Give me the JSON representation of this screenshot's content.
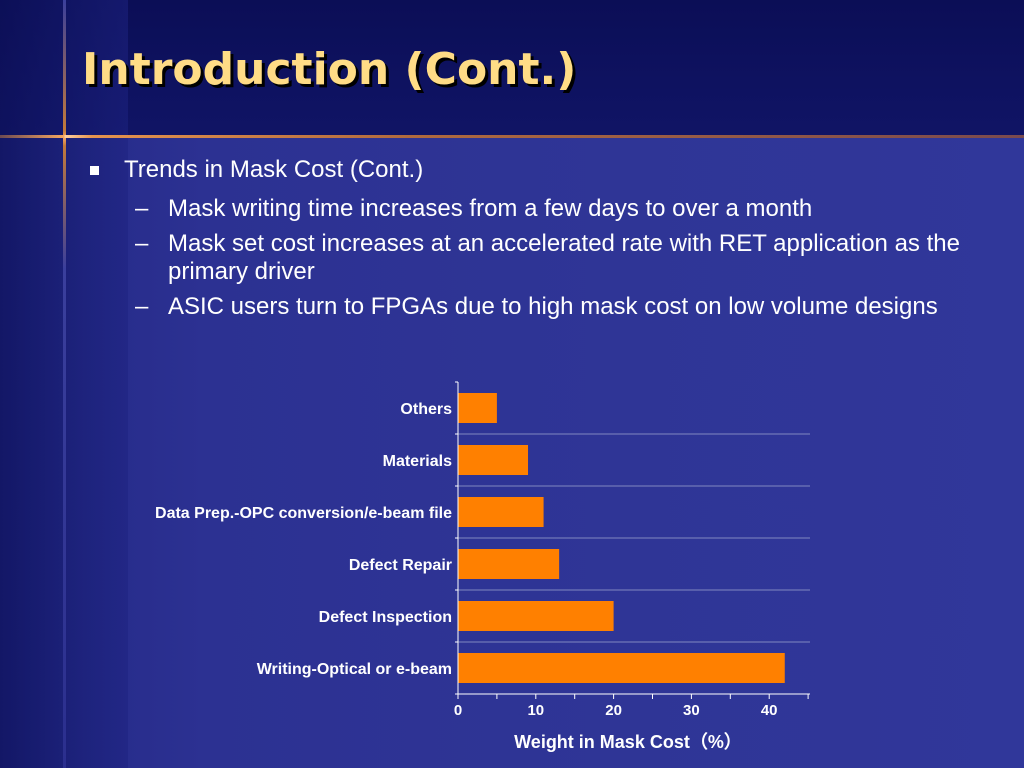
{
  "title": "Introduction (Cont.)",
  "bullet": "Trends in Mask Cost (Cont.)",
  "subbullets": [
    "Mask writing time increases from a few days to over a month",
    "Mask set cost increases at an accelerated rate with RET application as the primary driver",
    "ASIC users turn to FPGAs due to high mask cost  on low volume designs"
  ],
  "colors": {
    "title": "#ffdc86",
    "bar": "#ff8000",
    "background": "#2f3596"
  },
  "chart_data": {
    "type": "bar",
    "orientation": "horizontal",
    "categories": [
      "Others",
      "Materials",
      "Data Prep.-OPC conversion/e-beam file",
      "Defect Repair",
      "Defect Inspection",
      "Writing-Optical or e-beam"
    ],
    "values": [
      5,
      9,
      11,
      13,
      20,
      42
    ],
    "xlabel": "Weight in Mask Cost（%）",
    "xlim": [
      0,
      45
    ],
    "xticks": [
      0,
      10,
      20,
      30,
      40
    ],
    "grid": true
  }
}
